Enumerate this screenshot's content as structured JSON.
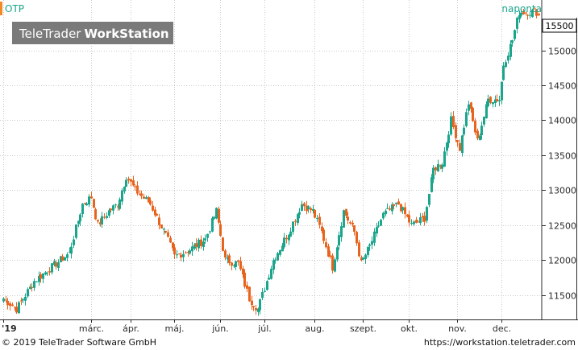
{
  "branding": {
    "product_prefix": "TeleTrader",
    "product_suffix": "WorkStation"
  },
  "header": {
    "ticker": "OTP",
    "period": "naponta",
    "last_value": "15500"
  },
  "footer": {
    "copyright": "© 2019 TeleTrader Software GmbH",
    "url": "https://workstation.teletrader.com"
  },
  "colors": {
    "up": "#1aa58c",
    "down": "#e8641e",
    "grid": "#c9c9c9",
    "axis": "#2a2a2a",
    "brand_bg": "#7a7a7a"
  },
  "chart_data": {
    "type": "candlestick",
    "title": "OTP",
    "subtitle": "naponta",
    "y_axis_position": "right",
    "ylim": [
      11150,
      15720
    ],
    "y_ticks": [
      11500,
      12000,
      12500,
      13000,
      13500,
      14000,
      14500,
      15000
    ],
    "y_tick_labels": [
      "11500",
      "12000",
      "12500",
      "13000",
      "13500",
      "14000",
      "14500",
      "15000"
    ],
    "x_ticks": [
      {
        "label": "'19",
        "day": 0
      },
      {
        "label": "márc.",
        "day": 40
      },
      {
        "label": "ápr.",
        "day": 58
      },
      {
        "label": "máj.",
        "day": 78
      },
      {
        "label": "jún.",
        "day": 99
      },
      {
        "label": "júl.",
        "day": 119
      },
      {
        "label": "aug.",
        "day": 142
      },
      {
        "label": "szept.",
        "day": 164
      },
      {
        "label": "okt.",
        "day": 185
      },
      {
        "label": "nov.",
        "day": 207
      },
      {
        "label": "dec.",
        "day": 227
      }
    ],
    "trading_days": 245,
    "grid": true,
    "key_points": [
      [
        0,
        11450
      ],
      [
        6,
        11300
      ],
      [
        14,
        11700
      ],
      [
        22,
        11900
      ],
      [
        30,
        12100
      ],
      [
        36,
        12800
      ],
      [
        40,
        12900
      ],
      [
        43,
        12500
      ],
      [
        48,
        12700
      ],
      [
        52,
        12800
      ],
      [
        56,
        13200
      ],
      [
        60,
        13000
      ],
      [
        67,
        12800
      ],
      [
        74,
        12350
      ],
      [
        78,
        12050
      ],
      [
        85,
        12150
      ],
      [
        92,
        12300
      ],
      [
        97,
        12700
      ],
      [
        101,
        12000
      ],
      [
        107,
        11950
      ],
      [
        112,
        11450
      ],
      [
        116,
        11300
      ],
      [
        123,
        12000
      ],
      [
        130,
        12400
      ],
      [
        136,
        12800
      ],
      [
        141,
        12700
      ],
      [
        145,
        12400
      ],
      [
        150,
        11900
      ],
      [
        155,
        12700
      ],
      [
        160,
        12400
      ],
      [
        163,
        11950
      ],
      [
        167,
        12200
      ],
      [
        173,
        12650
      ],
      [
        180,
        12800
      ],
      [
        186,
        12500
      ],
      [
        192,
        12600
      ],
      [
        196,
        13300
      ],
      [
        200,
        13400
      ],
      [
        204,
        14000
      ],
      [
        208,
        13600
      ],
      [
        212,
        14250
      ],
      [
        216,
        13700
      ],
      [
        221,
        14300
      ],
      [
        226,
        14300
      ],
      [
        228,
        14800
      ],
      [
        232,
        15150
      ],
      [
        235,
        15550
      ]
    ],
    "last_close": 15500
  }
}
